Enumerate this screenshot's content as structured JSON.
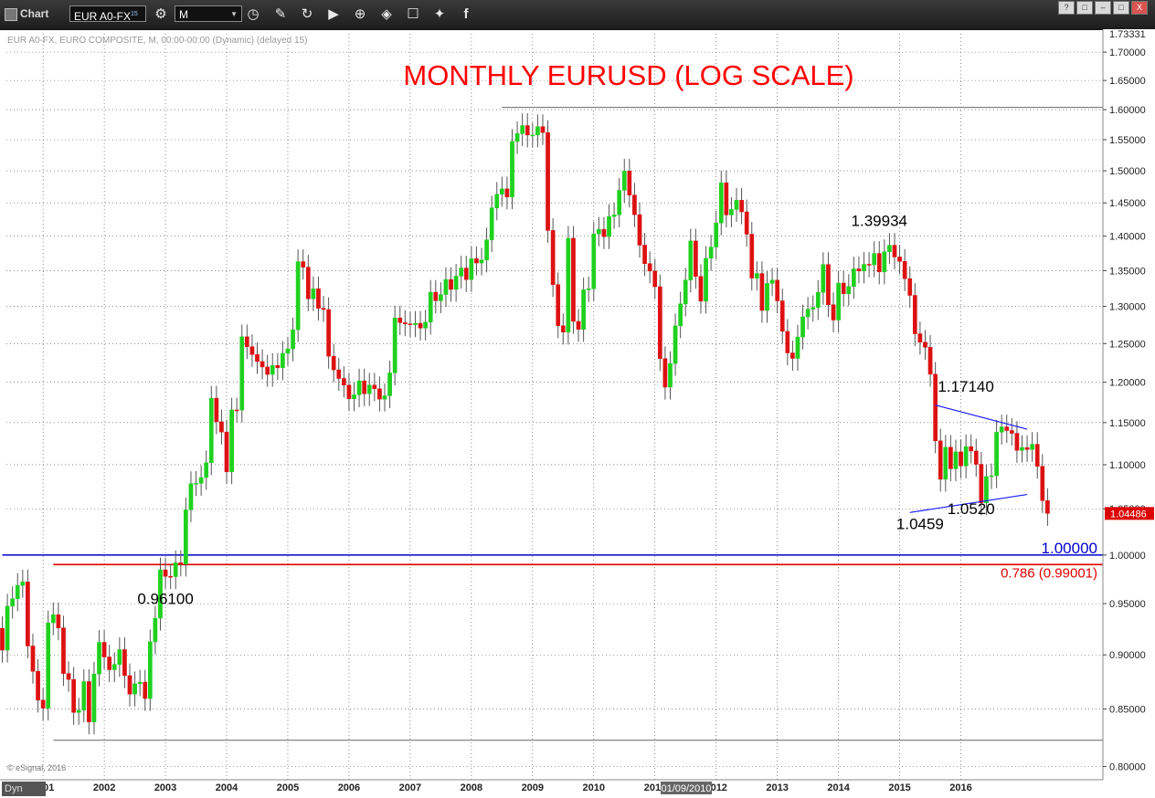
{
  "toolbar": {
    "chart_label": "Chart",
    "symbol": "EUR A0-FX",
    "symbol_superscript": "15",
    "interval": "M",
    "icons": [
      "gear-icon",
      "clock-icon",
      "pencil-icon",
      "refresh-icon",
      "play-icon",
      "zoom-icon",
      "tag-icon",
      "comment-icon",
      "twitter-icon",
      "facebook-icon"
    ]
  },
  "window": {
    "help": "?",
    "restore": "□",
    "min": "–",
    "max": "□",
    "close": "X"
  },
  "footer": {
    "dyn_label": "Dyn",
    "copyright": "© eSignal, 2016",
    "cursor_date": "01/09/2010"
  },
  "chart_data": {
    "type": "candlestick",
    "header": "EUR A0-FX, EURO COMPOSITE, M, 00:00-00:00 (Dynamic) (delayed 15)",
    "title": "MONTHLY EURUSD (LOG SCALE)",
    "scale": "log",
    "ylim": [
      0.795,
      1.7333
    ],
    "x_years": [
      "2001",
      "2002",
      "2003",
      "2004",
      "2005",
      "2006",
      "2007",
      "2008",
      "2009",
      "2010",
      "2011",
      "2012",
      "2013",
      "2014",
      "2015",
      "2016"
    ],
    "x_start": "2000-05",
    "y_ticks": [
      "0.80000",
      "0.85000",
      "0.90000",
      "0.95000",
      "1.00000",
      "1.05000",
      "1.10000",
      "1.15000",
      "1.20000",
      "1.25000",
      "1.30000",
      "1.35000",
      "1.40000",
      "1.45000",
      "1.50000",
      "1.55000",
      "1.60000",
      "1.65000",
      "1.70000"
    ],
    "top_value": "1.73331",
    "last_price": "1.04486",
    "closes": [
      0.9045,
      0.9475,
      0.955,
      0.9685,
      0.972,
      0.9085,
      0.8845,
      0.858,
      0.8508,
      0.931,
      0.939,
      0.926,
      0.8825,
      0.877,
      0.847,
      0.849,
      0.875,
      0.8385,
      0.882,
      0.912,
      0.898,
      0.886,
      0.891,
      0.905,
      0.8805,
      0.8635,
      0.873,
      0.8745,
      0.8595,
      0.9125,
      0.9355,
      0.9845,
      0.9778,
      0.9775,
      0.992,
      0.9905,
      1.0489,
      1.0783,
      1.0786,
      1.0852,
      1.1023,
      1.18,
      1.151,
      1.1386,
      1.0918,
      1.1654,
      1.1653,
      1.259,
      1.2459,
      1.2356,
      1.2265,
      1.2195,
      1.21,
      1.2215,
      1.2185,
      1.2372,
      1.243,
      1.2684,
      1.3628,
      1.355,
      1.3105,
      1.3245,
      1.2975,
      1.2957,
      1.2334,
      1.2158,
      1.2048,
      1.1964,
      1.1793,
      1.1842,
      1.2017,
      1.1856,
      1.1964,
      1.1918,
      1.1788,
      1.183,
      1.2119,
      1.2843,
      1.2779,
      1.2763,
      1.2752,
      1.277,
      1.2706,
      1.2785,
      1.3196,
      1.3077,
      1.3164,
      1.3374,
      1.3235,
      1.3422,
      1.3537,
      1.3373,
      1.3671,
      1.3609,
      1.3652,
      1.3946,
      1.4423,
      1.4633,
      1.4716,
      1.4592,
      1.5471,
      1.56,
      1.5733,
      1.5577,
      1.5577,
      1.5715,
      1.5618,
      1.4085,
      1.3302,
      1.2737,
      1.2652,
      1.3969,
      1.2796,
      1.2689,
      1.323,
      1.3245,
      1.4033,
      1.4102,
      1.3993,
      1.4294,
      1.4318,
      1.4694,
      1.4996,
      1.462,
      1.4321,
      1.3868,
      1.36,
      1.3494,
      1.3273,
      1.2303,
      1.1938,
      1.224,
      1.2736,
      1.3034,
      1.3366,
      1.3929,
      1.3418,
      1.3072,
      1.3676,
      1.384,
      1.4196,
      1.4812,
      1.4317,
      1.44,
      1.4541,
      1.4364,
      1.4029,
      1.3394,
      1.3459,
      1.2945,
      1.3319,
      1.3365,
      1.3076,
      1.2662,
      1.2377,
      1.2306,
      1.2587,
      1.2857,
      1.2961,
      1.2984,
      1.3194,
      1.3588,
      1.3023,
      1.2814,
      1.3324,
      1.3174,
      1.3277,
      1.3525,
      1.3495,
      1.359,
      1.3583,
      1.3747,
      1.3482,
      1.3772,
      1.3866,
      1.3696,
      1.3632,
      1.3387,
      1.3152,
      1.263,
      1.2518,
      1.2451,
      1.2102,
      1.128,
      1.0832,
      1.1205,
      1.0953,
      1.115,
      1.0986,
      1.1212,
      1.116,
      1.1005,
      1.0565,
      1.0863,
      1.0873,
      1.1384,
      1.1448,
      1.1404,
      1.137,
      1.1168,
      1.1201,
      1.1178,
      1.124,
      1.0981,
      1.0591,
      1.0449
    ],
    "trendlines": [
      {
        "name": "upper-trendline",
        "from": [
          "2015-08",
          1.1714
        ],
        "to": [
          "2017-02",
          1.142
        ],
        "color": "#1a1aff"
      },
      {
        "name": "lower-trendline",
        "from": [
          "2015-03",
          1.0459
        ],
        "to": [
          "2017-02",
          1.066
        ],
        "color": "#1a1aff"
      }
    ],
    "hlines": [
      {
        "name": "parity-line",
        "value": 1.0,
        "color": "#0000cc",
        "label": "1.00000",
        "x_from": "2000-05"
      },
      {
        "name": "fib-786-line",
        "value": 0.99001,
        "color": "#e00000",
        "label": "0.786 (0.99001)",
        "x_from": "2001-03"
      },
      {
        "name": "top-grey-line",
        "value": 1.6038,
        "color": "#666666",
        "label": "",
        "x_from": "2008-07"
      },
      {
        "name": "bottom-grey-line",
        "value": 0.8225,
        "color": "#666666",
        "label": "",
        "x_from": "2001-03"
      }
    ],
    "annotations": [
      {
        "name": "label-139934",
        "text": "1.39934",
        "at": [
          "2014-09",
          1.415
        ],
        "color": "#000000"
      },
      {
        "name": "label-117140",
        "text": "1.17140",
        "at": [
          "2016-02",
          1.188
        ],
        "color": "#000000"
      },
      {
        "name": "label-10459",
        "text": "1.0459",
        "at": [
          "2015-05",
          1.0275
        ],
        "color": "#000000"
      },
      {
        "name": "label-10520",
        "text": "1.0520",
        "at": [
          "2016-03",
          1.044
        ],
        "color": "#000000"
      },
      {
        "name": "label-096100",
        "text": "0.96100",
        "at": [
          "2003-01",
          0.9495
        ],
        "color": "#000000"
      }
    ],
    "colors": {
      "up": "#1fd11f",
      "down": "#dd1111",
      "wick": "#555555",
      "grid": "#444444",
      "title": "#ff0000",
      "price_tag": "#dd0000"
    }
  }
}
